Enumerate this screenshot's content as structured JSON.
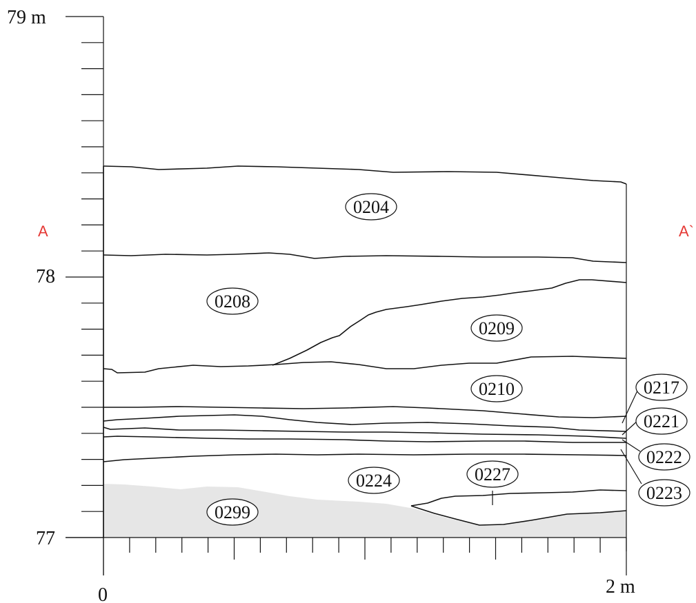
{
  "vertical_axis": {
    "top_label": "79 m",
    "mid_label": "78",
    "bottom_label": "77"
  },
  "horizontal_axis": {
    "left_label": "0",
    "right_label": "2 m"
  },
  "section_markers": {
    "left": "A",
    "right": "A`",
    "color": "#e53935"
  },
  "fill_color_0299": "#e6e6e6",
  "layers": [
    {
      "id": "0204",
      "label": "0204"
    },
    {
      "id": "0208",
      "label": "0208"
    },
    {
      "id": "0209",
      "label": "0209"
    },
    {
      "id": "0210",
      "label": "0210"
    },
    {
      "id": "0217",
      "label": "0217"
    },
    {
      "id": "0221",
      "label": "0221"
    },
    {
      "id": "0222",
      "label": "0222"
    },
    {
      "id": "0223",
      "label": "0223"
    },
    {
      "id": "0224",
      "label": "0224"
    },
    {
      "id": "0227",
      "label": "0227"
    },
    {
      "id": "0299",
      "label": "0299"
    }
  ]
}
